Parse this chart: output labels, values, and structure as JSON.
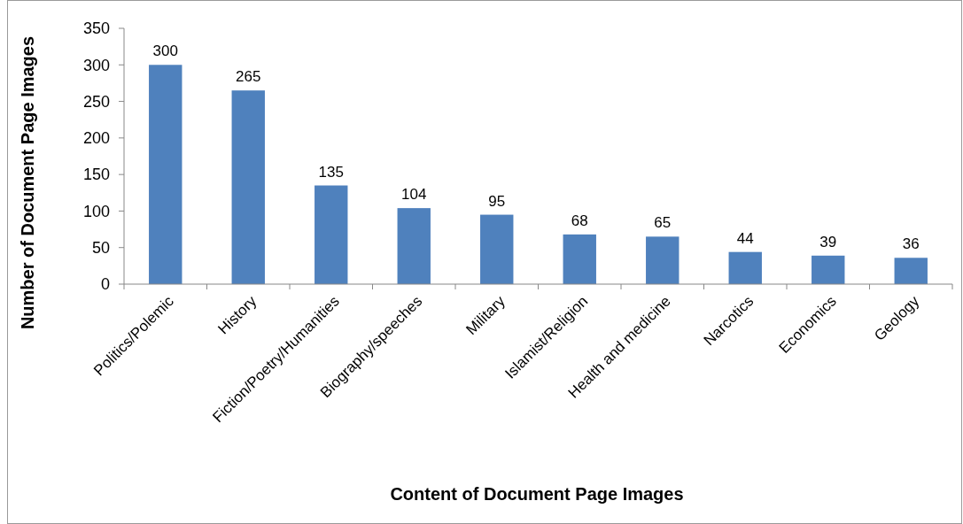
{
  "chart_data": {
    "type": "bar",
    "xlabel": "Content of Document Page Images",
    "ylabel": "Number of Document Page Images",
    "categories": [
      "Politics/Polemic",
      "History",
      "Fiction/Poetry/Humanities",
      "Biography/speeches",
      "Military",
      "Islamist/Religion",
      "Health and medicine",
      "Narcotics",
      "Economics",
      "Geology"
    ],
    "values": [
      300,
      265,
      135,
      104,
      95,
      68,
      65,
      44,
      39,
      36
    ],
    "color": "#4f81bd",
    "ylim": [
      0,
      350
    ],
    "yticks": [
      0,
      50,
      100,
      150,
      200,
      250,
      300,
      350
    ],
    "data_labels": true
  }
}
